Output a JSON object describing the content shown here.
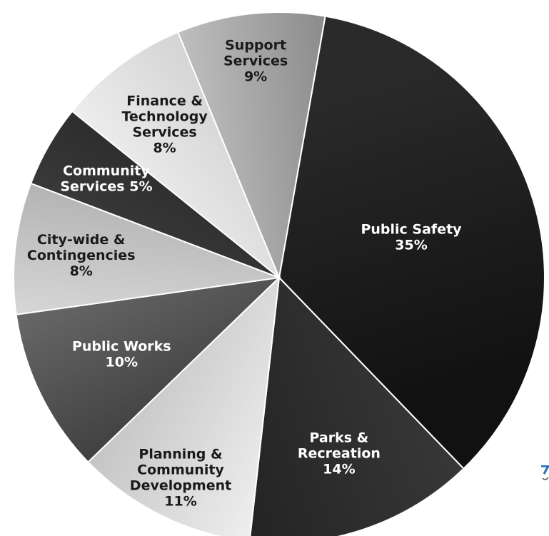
{
  "chart_data": {
    "type": "pie",
    "title": "",
    "slices": [
      {
        "label_lines": [
          "Public Safety",
          "35%"
        ],
        "value": 35,
        "color_from": "#2a2a2a",
        "color_to": "#111111",
        "text_color": "#ffffff"
      },
      {
        "label_lines": [
          "Parks &",
          "Recreation",
          "14%"
        ],
        "value": 14,
        "color_from": "#3c3c3c",
        "color_to": "#1f1f1f",
        "text_color": "#ffffff"
      },
      {
        "label_lines": [
          "Planning &",
          "Community",
          "Development",
          "11%"
        ],
        "value": 11,
        "color_from": "#ffffff",
        "color_to": "#b4b4b4",
        "text_color": "#1a1a1a"
      },
      {
        "label_lines": [
          "Public Works",
          "10%"
        ],
        "value": 10,
        "color_from": "#2e2e2e",
        "color_to": "#7a7a7a",
        "text_color": "#ffffff"
      },
      {
        "label_lines": [
          "City-wide &",
          "Contingencies",
          "8%"
        ],
        "value": 8,
        "color_from": "#f0f0f0",
        "color_to": "#9a9a9a",
        "text_color": "#1a1a1a"
      },
      {
        "label_lines": [
          "Community",
          "Services 5%"
        ],
        "value": 5,
        "color_from": "#4a4a4a",
        "color_to": "#1c1c1c",
        "text_color": "#ffffff"
      },
      {
        "label_lines": [
          "Finance &",
          "Technology",
          "Services",
          "8%"
        ],
        "value": 8,
        "color_from": "#ffffff",
        "color_to": "#c2c2c2",
        "text_color": "#1a1a1a"
      },
      {
        "label_lines": [
          "Support",
          "Services",
          "9%"
        ],
        "value": 9,
        "color_from": "#dcdcdc",
        "color_to": "#6e6e6e",
        "text_color": "#1a1a1a"
      }
    ]
  },
  "cutoff_mark": {
    "color": "#1f6fc1"
  }
}
